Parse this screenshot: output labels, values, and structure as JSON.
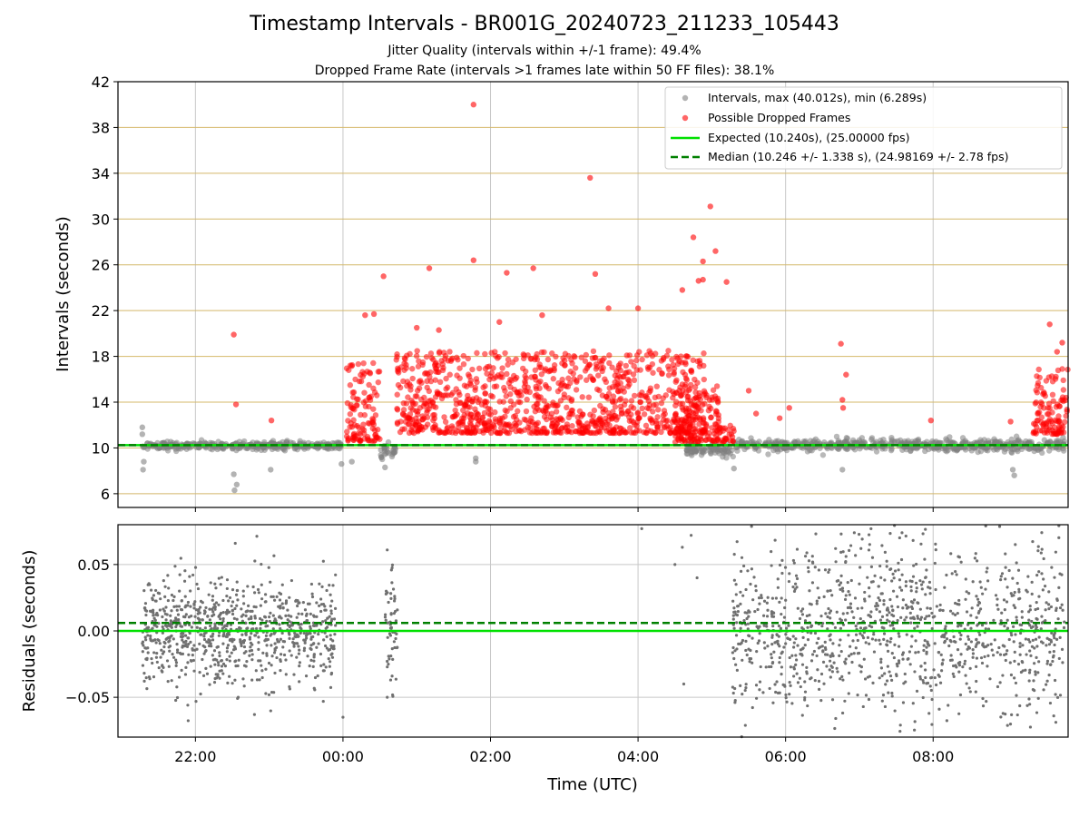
{
  "title": "Timestamp Intervals - BR001G_20240723_211233_105443",
  "subtitle1": "Jitter Quality (intervals within +/-1 frame): 49.4%",
  "subtitle2": "Dropped Frame Rate (intervals >1 frames late within 50 FF files): 38.1%",
  "chart_data": [
    {
      "type": "scatter",
      "panel": "top",
      "ylabel": "Intervals (seconds)",
      "ylim": [
        4.8,
        42
      ],
      "yticks": [
        6,
        10,
        14,
        18,
        22,
        26,
        30,
        34,
        38,
        42
      ],
      "xlim_hours": [
        -3.05,
        9.83
      ],
      "grid": true,
      "legend_position": "top-right",
      "legend": [
        {
          "label": "Intervals, max (40.012s), min (6.289s)",
          "marker": "dot",
          "color": "#808080"
        },
        {
          "label": "Possible Dropped Frames",
          "marker": "dot",
          "color": "#ff0000"
        },
        {
          "label": "Expected (10.240s), (25.00000 fps)",
          "marker": "line",
          "color": "#00e000"
        },
        {
          "label": "Median (10.246 +/- 1.338 s), (24.98169 +/- 2.78 fps)",
          "marker": "dashed",
          "color": "#008000"
        }
      ],
      "expected": 10.24,
      "median": 10.246,
      "normal_segments": [
        {
          "from": -2.72,
          "to": -0.02,
          "mean": 10.2,
          "spread": 0.35
        },
        {
          "from": 0.5,
          "to": 0.72,
          "mean": 9.8,
          "spread": 0.7
        },
        {
          "from": 4.65,
          "to": 5.3,
          "mean": 9.9,
          "spread": 0.6
        },
        {
          "from": 5.3,
          "to": 9.78,
          "mean": 10.25,
          "spread": 0.6
        }
      ],
      "normal_outliers": [
        {
          "x": -2.72,
          "y": 11.8
        },
        {
          "x": -2.72,
          "y": 11.2
        },
        {
          "x": -2.7,
          "y": 8.8
        },
        {
          "x": -2.71,
          "y": 8.1
        },
        {
          "x": -1.48,
          "y": 7.7
        },
        {
          "x": -1.47,
          "y": 6.3
        },
        {
          "x": -1.44,
          "y": 6.8
        },
        {
          "x": -0.98,
          "y": 8.1
        },
        {
          "x": -0.02,
          "y": 8.6
        },
        {
          "x": 0.12,
          "y": 8.8
        },
        {
          "x": 0.57,
          "y": 8.3
        },
        {
          "x": 1.8,
          "y": 9.1
        },
        {
          "x": 1.8,
          "y": 8.8
        },
        {
          "x": 5.3,
          "y": 8.2
        },
        {
          "x": 6.77,
          "y": 8.1
        },
        {
          "x": 9.08,
          "y": 8.1
        },
        {
          "x": 9.1,
          "y": 7.6
        }
      ],
      "dropped_clusters": [
        {
          "from": 0.05,
          "to": 0.5,
          "n": 110,
          "ymin": 10.6,
          "ymax": 17.5
        },
        {
          "from": 0.72,
          "to": 4.9,
          "n": 1050,
          "ymin": 11.3,
          "ymax": 18.5
        },
        {
          "from": 4.5,
          "to": 5.1,
          "n": 140,
          "ymin": 10.5,
          "ymax": 15.5
        },
        {
          "from": 5.1,
          "to": 5.3,
          "n": 25,
          "ymin": 10.4,
          "ymax": 12.0
        },
        {
          "from": 9.35,
          "to": 9.83,
          "n": 110,
          "ymin": 11.2,
          "ymax": 17.0
        }
      ],
      "dropped_outliers": [
        {
          "x": -1.48,
          "y": 19.9
        },
        {
          "x": -1.45,
          "y": 13.8
        },
        {
          "x": -0.97,
          "y": 12.4
        },
        {
          "x": 0.3,
          "y": 21.6
        },
        {
          "x": 0.42,
          "y": 21.7
        },
        {
          "x": 0.55,
          "y": 25.0
        },
        {
          "x": 1.17,
          "y": 25.7
        },
        {
          "x": 1.77,
          "y": 40.0
        },
        {
          "x": 1.77,
          "y": 26.4
        },
        {
          "x": 2.22,
          "y": 25.3
        },
        {
          "x": 2.58,
          "y": 25.7
        },
        {
          "x": 3.35,
          "y": 33.6
        },
        {
          "x": 3.42,
          "y": 25.2
        },
        {
          "x": 3.6,
          "y": 22.2
        },
        {
          "x": 4.0,
          "y": 22.2
        },
        {
          "x": 4.75,
          "y": 28.4
        },
        {
          "x": 4.98,
          "y": 31.1
        },
        {
          "x": 4.88,
          "y": 26.3
        },
        {
          "x": 5.05,
          "y": 27.2
        },
        {
          "x": 4.82,
          "y": 24.6
        },
        {
          "x": 5.2,
          "y": 24.5
        },
        {
          "x": 4.6,
          "y": 23.8
        },
        {
          "x": 4.88,
          "y": 24.7
        },
        {
          "x": 1.0,
          "y": 20.5
        },
        {
          "x": 1.3,
          "y": 20.3
        },
        {
          "x": 2.7,
          "y": 21.6
        },
        {
          "x": 2.12,
          "y": 21.0
        },
        {
          "x": 5.5,
          "y": 15.0
        },
        {
          "x": 5.6,
          "y": 13.0
        },
        {
          "x": 6.05,
          "y": 13.5
        },
        {
          "x": 5.92,
          "y": 12.6
        },
        {
          "x": 6.75,
          "y": 19.1
        },
        {
          "x": 6.82,
          "y": 16.4
        },
        {
          "x": 6.77,
          "y": 14.2
        },
        {
          "x": 6.78,
          "y": 13.5
        },
        {
          "x": 7.97,
          "y": 12.4
        },
        {
          "x": 9.58,
          "y": 20.8
        },
        {
          "x": 9.75,
          "y": 19.2
        },
        {
          "x": 9.68,
          "y": 18.4
        },
        {
          "x": 9.05,
          "y": 12.3
        }
      ]
    },
    {
      "type": "scatter",
      "panel": "bottom",
      "xlabel": "Time (UTC)",
      "ylabel": "Residuals (seconds)",
      "ylim": [
        -0.08,
        0.08
      ],
      "yticks": [
        -0.05,
        0.0,
        0.05
      ],
      "ytick_labels": [
        "−0.05",
        "0.00",
        "0.05"
      ],
      "xticks_hours": [
        -2,
        0,
        2,
        4,
        6,
        8
      ],
      "xtick_labels": [
        "22:00",
        "00:00",
        "02:00",
        "04:00",
        "06:00",
        "08:00"
      ],
      "grid": true,
      "expected": 0.0,
      "median": 0.006,
      "segments": [
        {
          "from": -2.72,
          "to": -0.1,
          "n": 850,
          "sd": 0.02
        },
        {
          "from": 0.57,
          "to": 0.74,
          "n": 55,
          "sd": 0.02
        },
        {
          "from": 5.28,
          "to": 9.78,
          "n": 1150,
          "sd": 0.035
        }
      ],
      "outliers": [
        {
          "x": 0.6,
          "y": 0.061
        },
        {
          "x": 0.6,
          "y": -0.05
        },
        {
          "x": 4.6,
          "y": 0.063
        },
        {
          "x": 4.72,
          "y": 0.072
        },
        {
          "x": 4.8,
          "y": 0.04
        },
        {
          "x": 4.62,
          "y": -0.04
        },
        {
          "x": 4.05,
          "y": 0.077
        },
        {
          "x": 4.5,
          "y": 0.05
        },
        {
          "x": -1.46,
          "y": 0.066
        },
        {
          "x": -1.2,
          "y": -0.063
        },
        {
          "x": -1.42,
          "y": -0.05
        },
        {
          "x": 0.0,
          "y": -0.065
        }
      ]
    }
  ]
}
